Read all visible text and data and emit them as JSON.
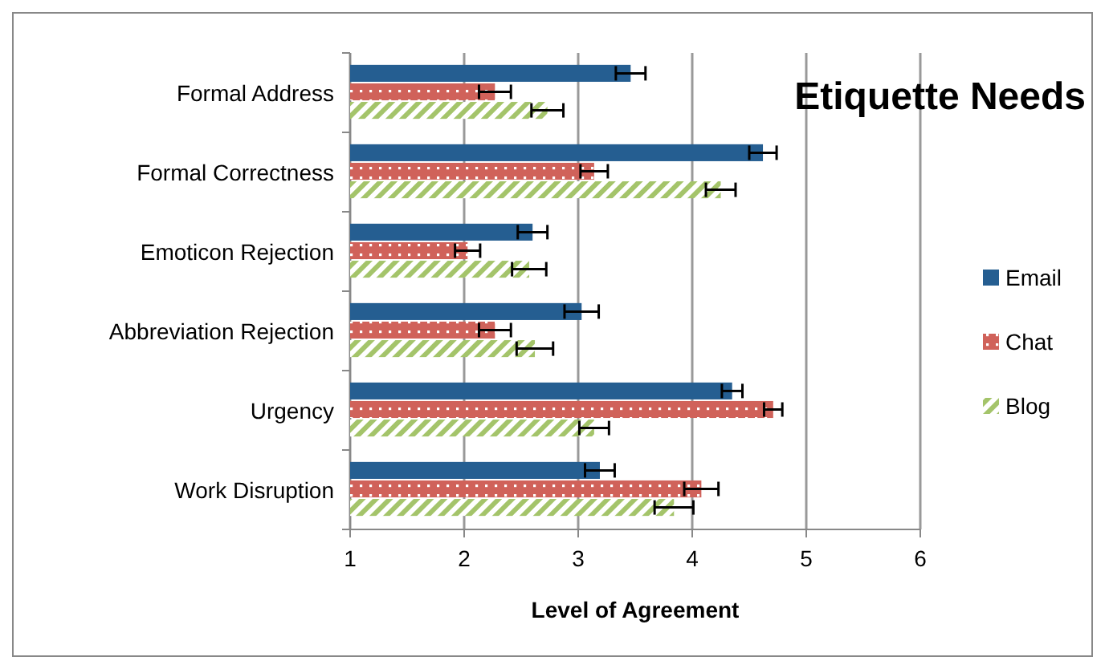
{
  "chart_data": {
    "type": "bar",
    "orientation": "horizontal",
    "title": "Etiquette Needs",
    "xlabel": "Level of Agreement",
    "categories": [
      "Formal Address",
      "Formal Correctness",
      "Emoticon Rejection",
      "Abbreviation Rejection",
      "Urgency",
      "Work Disruption"
    ],
    "series": [
      {
        "name": "Email",
        "color": "#255e91",
        "values": [
          3.46,
          4.62,
          2.6,
          3.03,
          4.35,
          3.19
        ],
        "errors": [
          0.13,
          0.12,
          0.13,
          0.15,
          0.09,
          0.13
        ]
      },
      {
        "name": "Chat",
        "color": "#d0625a",
        "values": [
          2.27,
          3.14,
          2.03,
          2.27,
          4.71,
          4.08
        ],
        "errors": [
          0.14,
          0.12,
          0.11,
          0.14,
          0.08,
          0.15
        ]
      },
      {
        "name": "Blog",
        "color": "#a4c46a",
        "values": [
          2.73,
          4.25,
          2.57,
          2.62,
          3.14,
          3.84
        ],
        "errors": [
          0.14,
          0.13,
          0.15,
          0.16,
          0.13,
          0.17
        ]
      }
    ],
    "xlim": [
      1,
      6
    ],
    "xticks": [
      1,
      2,
      3,
      4,
      5,
      6
    ],
    "grid": "x",
    "legend": "right"
  }
}
